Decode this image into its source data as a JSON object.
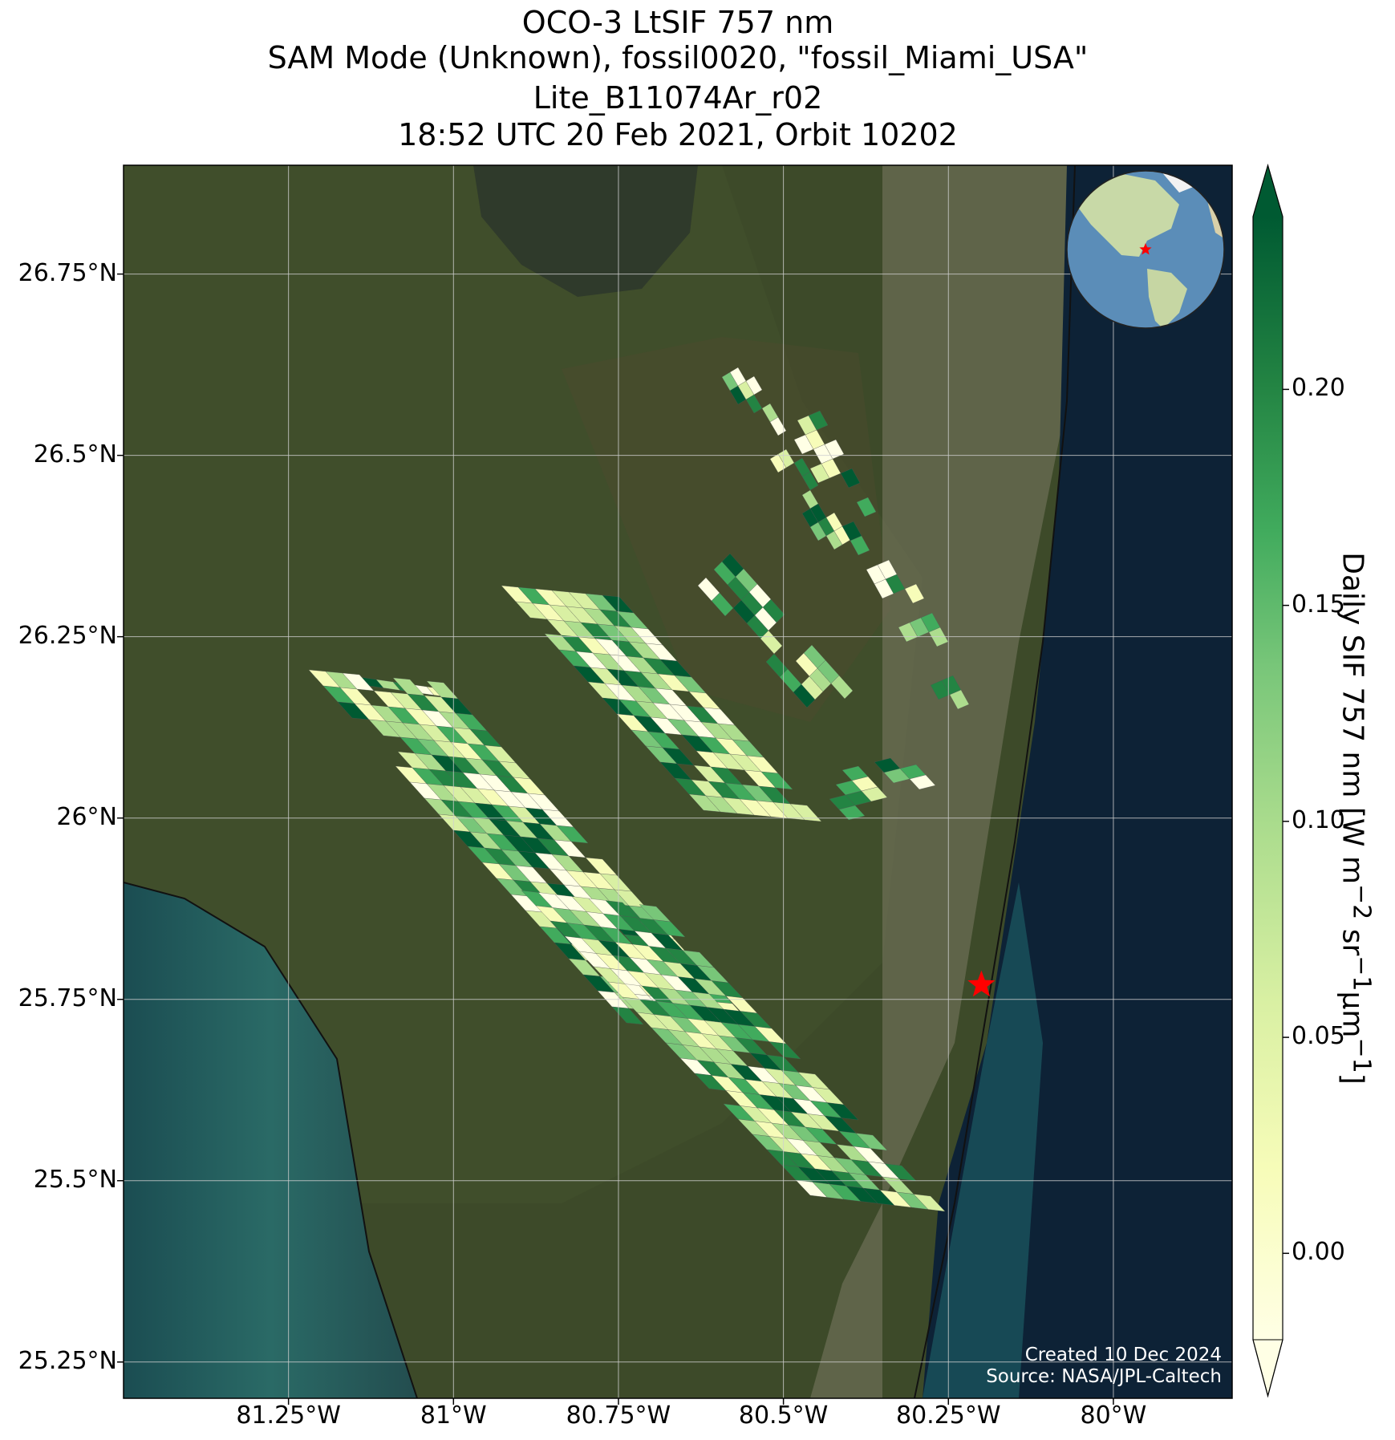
{
  "title": {
    "line1": "OCO-3 LtSIF 757 nm",
    "line2": "SAM Mode (Unknown), fossil0020, \"fossil_Miami_USA\"",
    "line3": "Lite_B11074Ar_r02",
    "line4": "18:52 UTC 20 Feb 2021, Orbit 10202"
  },
  "map": {
    "lon_range": [
      -81.5,
      -79.82
    ],
    "lat_range": [
      25.2,
      26.9
    ],
    "lat_ticks": [
      {
        "value": 26.75,
        "label": "26.75°N"
      },
      {
        "value": 26.5,
        "label": "26.5°N"
      },
      {
        "value": 26.25,
        "label": "26.25°N"
      },
      {
        "value": 26.0,
        "label": "26°N"
      },
      {
        "value": 25.75,
        "label": "25.75°N"
      },
      {
        "value": 25.5,
        "label": "25.5°N"
      },
      {
        "value": 25.25,
        "label": "25.25°N"
      }
    ],
    "lon_ticks": [
      {
        "value": -81.25,
        "label": "81.25°W"
      },
      {
        "value": -81.0,
        "label": "81°W"
      },
      {
        "value": -80.75,
        "label": "80.75°W"
      },
      {
        "value": -80.5,
        "label": "80.5°W"
      },
      {
        "value": -80.25,
        "label": "80.25°W"
      },
      {
        "value": -80.0,
        "label": "80°W"
      }
    ],
    "target_marker": {
      "lon": -80.2,
      "lat": 25.77,
      "color": "#ff0000",
      "shape": "star"
    },
    "basemap": "satellite imagery",
    "gridlines": true,
    "inset": "globe showing the Americas with red star marker"
  },
  "colorbar": {
    "title_main": "Daily SIF 757 nm [W m",
    "sup1": "−2",
    "mid1": " sr",
    "sup2": "−1",
    "mid2": "μm",
    "sup3": "−1",
    "tail": "]",
    "colormap": "YlGn",
    "range": [
      -0.02,
      0.24
    ],
    "ticks": [
      {
        "value": 0.0,
        "label": "0.00"
      },
      {
        "value": 0.05,
        "label": "0.05"
      },
      {
        "value": 0.1,
        "label": "0.10"
      },
      {
        "value": 0.15,
        "label": "0.15"
      },
      {
        "value": 0.2,
        "label": "0.20"
      }
    ],
    "extend": "both"
  },
  "credits": {
    "created": "Created 10 Dec 2024",
    "source": "Source: NASA/JPL-Caltech"
  },
  "colors": {
    "marker": "#ff0000",
    "ocean": "#0d2236",
    "land": "#3c4a2a"
  }
}
